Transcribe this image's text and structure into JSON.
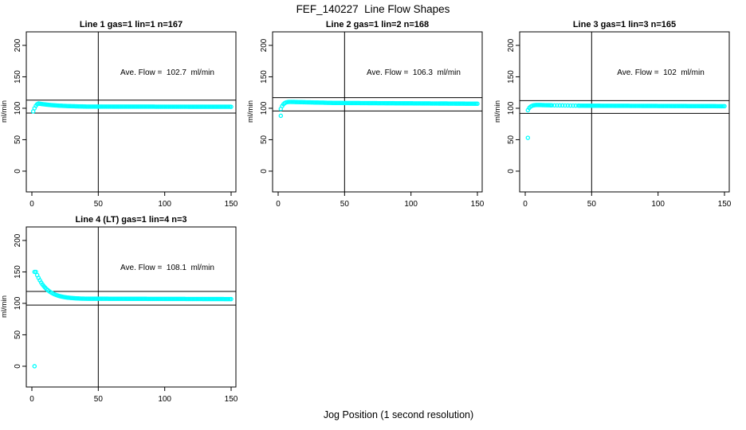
{
  "page": {
    "main_title": "FEF_140227  Line Flow Shapes",
    "x_axis_label": "Jog Position (1 second resolution)",
    "colors": {
      "points": "#00FFFF",
      "axis": "#000000",
      "background": "#FFFFFF"
    }
  },
  "chart_data": [
    {
      "type": "scatter",
      "title": "Line 1 gas=1 lin=1 n=167",
      "ylabel": "ml/min",
      "annotation": "Ave. Flow =  102.7  ml/min",
      "ave_flow_ml_min": 102.7,
      "n": 167,
      "x_ticks": [
        0,
        50,
        100,
        150
      ],
      "y_ticks": [
        0,
        50,
        100,
        150,
        200
      ],
      "x_range": [
        -4.2,
        153.6
      ],
      "y_range": [
        -33,
        221.5
      ],
      "vline_x": 50,
      "hlines": [
        113.0,
        92.4
      ],
      "points": [
        [
          1,
          95
        ],
        [
          2,
          100
        ],
        [
          3,
          104
        ],
        [
          4,
          106.5
        ],
        [
          5,
          107.5
        ],
        [
          6,
          107.2
        ],
        [
          7,
          106.9
        ],
        [
          8,
          106.6
        ],
        [
          9,
          106.3
        ],
        [
          10,
          106.1
        ],
        [
          11,
          105.8
        ],
        [
          12,
          105.6
        ],
        [
          13,
          105.4
        ],
        [
          14,
          105.2
        ],
        [
          15,
          105.0
        ],
        [
          16,
          104.8
        ],
        [
          17,
          104.7
        ],
        [
          18,
          104.5
        ],
        [
          19,
          104.4
        ],
        [
          20,
          104.2
        ],
        [
          21,
          104.1
        ],
        [
          22,
          104.0
        ],
        [
          23,
          103.9
        ],
        [
          24,
          103.8
        ],
        [
          25,
          103.7
        ],
        [
          26,
          103.6
        ],
        [
          27,
          103.5
        ],
        [
          28,
          103.4
        ],
        [
          29,
          103.4
        ],
        [
          30,
          103.3
        ],
        [
          31,
          103.2
        ],
        [
          32,
          103.2
        ],
        [
          33,
          103.1
        ],
        [
          34,
          103.1
        ],
        [
          35,
          103.0
        ],
        [
          36,
          103.0
        ],
        [
          37,
          102.9
        ],
        [
          38,
          102.9
        ],
        [
          39,
          102.8
        ],
        [
          40,
          102.8
        ]
      ],
      "tail": {
        "x_from": 41,
        "x_to": 150,
        "x_step": 1,
        "y_from": 102.7,
        "y_to": 102.4
      },
      "outliers": []
    },
    {
      "type": "scatter",
      "title": "Line 2 gas=1 lin=2 n=168",
      "ylabel": "ml/min",
      "annotation": "Ave. Flow =  106.3  ml/min",
      "ave_flow_ml_min": 106.3,
      "n": 168,
      "x_ticks": [
        0,
        50,
        100,
        150
      ],
      "y_ticks": [
        0,
        50,
        100,
        150,
        200
      ],
      "x_range": [
        -4.2,
        153.6
      ],
      "y_range": [
        -33,
        221.5
      ],
      "vline_x": 50,
      "hlines": [
        116.9,
        95.7
      ],
      "points": [
        [
          2,
          99
        ],
        [
          3,
          103.5
        ],
        [
          4,
          106.5
        ],
        [
          5,
          108.3
        ],
        [
          6,
          109.3
        ],
        [
          7,
          109.8
        ],
        [
          8,
          110.0
        ],
        [
          9,
          110.1
        ],
        [
          10,
          110.1
        ],
        [
          11,
          110.0
        ],
        [
          12,
          110.0
        ],
        [
          13,
          109.9
        ],
        [
          14,
          109.9
        ],
        [
          15,
          109.8
        ],
        [
          16,
          109.8
        ],
        [
          17,
          109.7
        ],
        [
          18,
          109.7
        ],
        [
          19,
          109.6
        ],
        [
          20,
          109.6
        ],
        [
          21,
          109.5
        ],
        [
          22,
          109.5
        ],
        [
          23,
          109.4
        ],
        [
          24,
          109.4
        ],
        [
          25,
          109.3
        ],
        [
          26,
          109.3
        ],
        [
          27,
          109.2
        ],
        [
          28,
          109.2
        ],
        [
          29,
          109.1
        ],
        [
          30,
          109.1
        ],
        [
          31,
          109.0
        ],
        [
          32,
          109.0
        ],
        [
          33,
          108.9
        ],
        [
          34,
          108.9
        ],
        [
          35,
          108.8
        ],
        [
          36,
          108.8
        ],
        [
          37,
          108.7
        ],
        [
          38,
          108.7
        ],
        [
          39,
          108.6
        ],
        [
          40,
          108.6
        ]
      ],
      "tail": {
        "x_from": 41,
        "x_to": 150,
        "x_step": 1,
        "y_from": 108.5,
        "y_to": 107.2
      },
      "outliers": [
        [
          2,
          88
        ]
      ]
    },
    {
      "type": "scatter",
      "title": "Line 3 gas=1 lin=3 n=165",
      "ylabel": "ml/min",
      "annotation": "Ave. Flow =  102  ml/min",
      "ave_flow_ml_min": 102,
      "n": 165,
      "x_ticks": [
        0,
        50,
        100,
        150
      ],
      "y_ticks": [
        0,
        50,
        100,
        150,
        200
      ],
      "x_range": [
        -4.2,
        153.6
      ],
      "y_range": [
        -33,
        221.5
      ],
      "vline_x": 50,
      "hlines": [
        112.2,
        91.8
      ],
      "points": [
        [
          2,
          97
        ],
        [
          3,
          100.5
        ],
        [
          4,
          102.5
        ],
        [
          5,
          103.8
        ],
        [
          6,
          104.5
        ],
        [
          7,
          104.9
        ],
        [
          8,
          105.1
        ],
        [
          9,
          105.2
        ],
        [
          10,
          105.2
        ],
        [
          11,
          105.1
        ],
        [
          12,
          105.1
        ],
        [
          13,
          105.0
        ],
        [
          14,
          105.0
        ],
        [
          15,
          104.9
        ],
        [
          16,
          104.9
        ],
        [
          17,
          104.8
        ],
        [
          18,
          104.8
        ],
        [
          19,
          104.7
        ],
        [
          20,
          104.7
        ],
        [
          22,
          104.6
        ],
        [
          24,
          104.6
        ],
        [
          26,
          104.5
        ],
        [
          28,
          104.5
        ],
        [
          30,
          104.4
        ],
        [
          32,
          104.4
        ],
        [
          34,
          104.3
        ],
        [
          36,
          104.3
        ],
        [
          38,
          104.2
        ],
        [
          40,
          104.2
        ]
      ],
      "tail": {
        "x_from": 41,
        "x_to": 150,
        "x_step": 1,
        "y_from": 104.1,
        "y_to": 103.3
      },
      "outliers": [
        [
          2,
          53
        ]
      ]
    },
    {
      "type": "scatter",
      "title": "Line 4 (LT) gas=1 lin=4 n=3",
      "ylabel": "ml/min",
      "annotation": "Ave. Flow =  108.1  ml/min",
      "ave_flow_ml_min": 108.1,
      "n": 3,
      "x_ticks": [
        0,
        50,
        100,
        150
      ],
      "y_ticks": [
        0,
        50,
        100,
        150,
        200
      ],
      "x_range": [
        -4.2,
        153.6
      ],
      "y_range": [
        -33,
        221.5
      ],
      "vline_x": 50,
      "hlines": [
        118.9,
        97.3
      ],
      "points": [
        [
          2,
          150
        ],
        [
          3,
          150
        ],
        [
          4,
          144.9
        ],
        [
          5,
          140.5
        ],
        [
          6,
          136.6
        ],
        [
          7,
          133.1
        ],
        [
          8,
          130.0
        ],
        [
          9,
          127.3
        ],
        [
          10,
          124.9
        ],
        [
          11,
          122.8
        ],
        [
          12,
          121.0
        ],
        [
          13,
          119.3
        ],
        [
          14,
          117.9
        ],
        [
          15,
          116.6
        ],
        [
          16,
          115.5
        ],
        [
          17,
          114.5
        ],
        [
          18,
          113.6
        ],
        [
          19,
          112.8
        ],
        [
          20,
          112.1
        ],
        [
          21,
          111.5
        ],
        [
          22,
          111.0
        ],
        [
          23,
          110.5
        ],
        [
          24,
          110.1
        ],
        [
          25,
          109.7
        ],
        [
          26,
          109.4
        ],
        [
          27,
          109.1
        ],
        [
          28,
          108.9
        ],
        [
          29,
          108.7
        ],
        [
          30,
          108.5
        ],
        [
          31,
          108.3
        ],
        [
          32,
          108.1
        ],
        [
          33,
          108.0
        ],
        [
          34,
          107.9
        ],
        [
          35,
          107.8
        ],
        [
          36,
          107.7
        ],
        [
          37,
          107.6
        ],
        [
          38,
          107.5
        ],
        [
          39,
          107.5
        ],
        [
          40,
          107.4
        ]
      ],
      "tail": {
        "x_from": 41,
        "x_to": 150,
        "x_step": 1,
        "y_from": 107.4,
        "y_to": 106.8
      },
      "outliers": [
        [
          2,
          0
        ]
      ]
    }
  ]
}
